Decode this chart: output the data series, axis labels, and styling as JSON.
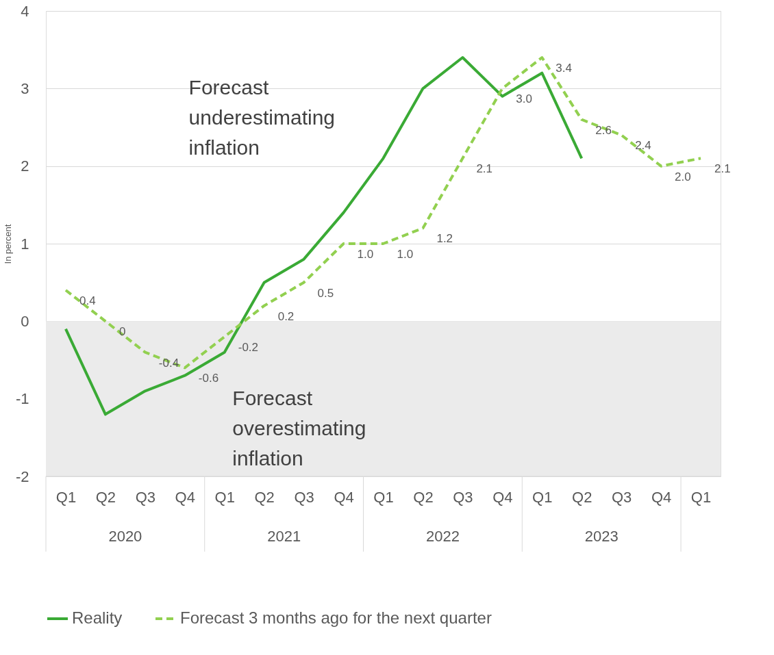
{
  "chart_data": {
    "type": "line",
    "ylabel": "In percent",
    "categories": [
      "Q1",
      "Q2",
      "Q3",
      "Q4",
      "Q1",
      "Q2",
      "Q3",
      "Q4",
      "Q1",
      "Q2",
      "Q3",
      "Q4",
      "Q1",
      "Q2",
      "Q3",
      "Q4",
      "Q1"
    ],
    "series": [
      {
        "name": "Reality",
        "color": "#3aaa35",
        "line_style": "solid",
        "values": [
          -0.1,
          -1.2,
          -0.9,
          -0.7,
          -0.4,
          0.5,
          0.8,
          1.4,
          2.1,
          3.0,
          3.4,
          2.9,
          3.2,
          2.1,
          null,
          null,
          null
        ]
      },
      {
        "name": "Forecast 3 months ago for the next quarter",
        "color": "#92d050",
        "line_style": "dashed",
        "values": [
          0.4,
          0,
          -0.4,
          -0.6,
          -0.2,
          0.2,
          0.5,
          1.0,
          1.0,
          1.2,
          2.1,
          3.0,
          3.4,
          2.6,
          2.4,
          2.0,
          2.1
        ],
        "value_labels": [
          "0.4",
          "0",
          "-0.4",
          "-0.6",
          "-0.2",
          "0.2",
          "0.5",
          "1.0",
          "1.0",
          "1.2",
          "2.1",
          "3.0",
          "3.4",
          "2.6",
          "2.4",
          "2.0",
          "2.1"
        ]
      }
    ],
    "ylim": [
      -2,
      4
    ],
    "yticks": [
      -2,
      -1,
      0,
      1,
      2,
      3,
      4
    ],
    "grid": "y",
    "legend": "bottom",
    "marker": "none",
    "bands": [
      {
        "axis": "y",
        "from": -2,
        "to": 0,
        "color": "#ebebeb"
      }
    ],
    "annotations": [
      "Forecast underestimating inflation",
      "Forecast overestimating inflation",
      "2020",
      "2021",
      "2022",
      "2023"
    ]
  }
}
